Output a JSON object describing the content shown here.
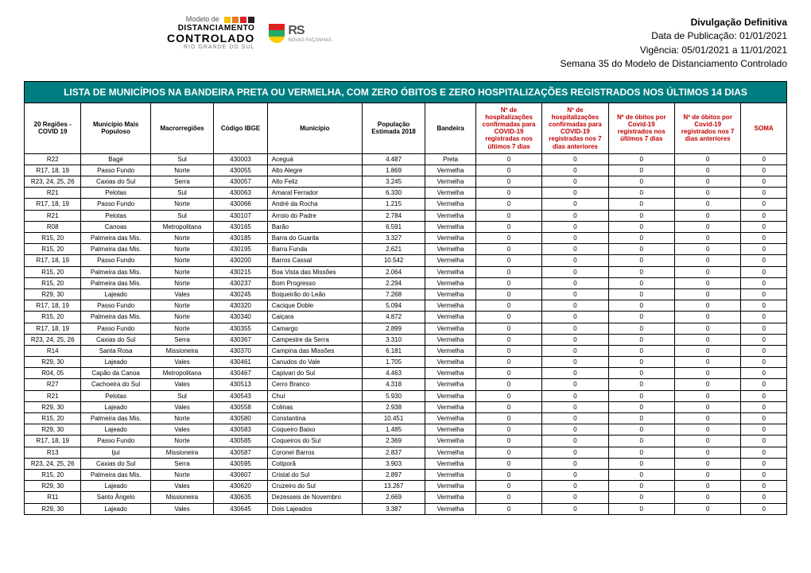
{
  "colors": {
    "title_bg": "#007d80",
    "red_text": "#c00000"
  },
  "header": {
    "line1": "Divulgação Definitiva",
    "line2_label": "Data de Publicação:",
    "line2_value": "01/01/2021",
    "line3_label": "Vigência:",
    "line3_value": "05/01/2021 a 11/01/2021",
    "line4": "Semana 35 do Modelo de Distanciamento Controlado"
  },
  "logo_dc": {
    "l1": "Modelo de",
    "l2": "DISTANCIAMENTO",
    "l3": "CONTROLADO",
    "l4": "RIO GRANDE DO SUL"
  },
  "logo_rs": {
    "text": "RS",
    "sub": "NOVAS FAÇANHAS"
  },
  "title": "LISTA DE MUNICÍPIOS NA BANDEIRA PRETA OU VERMELHA, COM ZERO ÓBITOS E ZERO HOSPITALIZAÇÕES REGISTRADOS NOS ÚLTIMOS 14 DIAS",
  "columns": [
    {
      "label": "20 Regiões - COVID 19",
      "red": false
    },
    {
      "label": "Município Mais Populoso",
      "red": false
    },
    {
      "label": "Macrorregiões",
      "red": false
    },
    {
      "label": "Código IBGE",
      "red": false
    },
    {
      "label": "Município",
      "red": false
    },
    {
      "label": "População Estimada 2018",
      "red": false
    },
    {
      "label": "Bandeira",
      "red": false
    },
    {
      "label": "Nº de hospitalizações confirmadas para COVID-19 registradas nos últimos 7 dias",
      "red": true
    },
    {
      "label": "Nº de hospitalizações confirmadas para COVID-19 registradas nos 7 dias anteriores",
      "red": true
    },
    {
      "label": "Nº de óbitos por Covid-19 registrados nos últimos 7 dias",
      "red": true
    },
    {
      "label": "Nº de óbitos por Covid-19 registrados nos 7 dias anteriores",
      "red": true
    },
    {
      "label": "SOMA",
      "red": true
    }
  ],
  "rows": [
    [
      "R22",
      "Bagé",
      "Sul",
      "430003",
      "Aceguá",
      "4.487",
      "Preta",
      "0",
      "0",
      "0",
      "0",
      "0"
    ],
    [
      "R17, 18, 19",
      "Passo Fundo",
      "Norte",
      "430055",
      "Alto Alegre",
      "1.869",
      "Vermelha",
      "0",
      "0",
      "0",
      "0",
      "0"
    ],
    [
      "R23, 24, 25, 26",
      "Caxias do Sul",
      "Serra",
      "430057",
      "Alto Feliz",
      "3.245",
      "Vermelha",
      "0",
      "0",
      "0",
      "0",
      "0"
    ],
    [
      "R21",
      "Pelotas",
      "Sul",
      "430063",
      "Amaral Ferrador",
      "6.330",
      "Vermelha",
      "0",
      "0",
      "0",
      "0",
      "0"
    ],
    [
      "R17, 18, 19",
      "Passo Fundo",
      "Norte",
      "430066",
      "André da Rocha",
      "1.215",
      "Vermelha",
      "0",
      "0",
      "0",
      "0",
      "0"
    ],
    [
      "R21",
      "Pelotas",
      "Sul",
      "430107",
      "Arroio do Padre",
      "2.784",
      "Vermelha",
      "0",
      "0",
      "0",
      "0",
      "0"
    ],
    [
      "R08",
      "Canoas",
      "Metropolitana",
      "430165",
      "Barão",
      "6.591",
      "Vermelha",
      "0",
      "0",
      "0",
      "0",
      "0"
    ],
    [
      "R15, 20",
      "Palmeira das Mis.",
      "Norte",
      "430185",
      "Barra do Guarita",
      "3.327",
      "Vermelha",
      "0",
      "0",
      "0",
      "0",
      "0"
    ],
    [
      "R15, 20",
      "Palmeira das Mis.",
      "Norte",
      "430195",
      "Barra Funda",
      "2.621",
      "Vermelha",
      "0",
      "0",
      "0",
      "0",
      "0"
    ],
    [
      "R17, 18, 19",
      "Passo Fundo",
      "Norte",
      "430200",
      "Barros Cassal",
      "10.542",
      "Vermelha",
      "0",
      "0",
      "0",
      "0",
      "0"
    ],
    [
      "R15, 20",
      "Palmeira das Mis.",
      "Norte",
      "430215",
      "Boa Vista das Missões",
      "2.064",
      "Vermelha",
      "0",
      "0",
      "0",
      "0",
      "0"
    ],
    [
      "R15, 20",
      "Palmeira das Mis.",
      "Norte",
      "430237",
      "Bom Progresso",
      "2.294",
      "Vermelha",
      "0",
      "0",
      "0",
      "0",
      "0"
    ],
    [
      "R29, 30",
      "Lajeado",
      "Vales",
      "430245",
      "Boqueirão do Leão",
      "7.268",
      "Vermelha",
      "0",
      "0",
      "0",
      "0",
      "0"
    ],
    [
      "R17, 18, 19",
      "Passo Fundo",
      "Norte",
      "430320",
      "Cacique Doble",
      "5.094",
      "Vermelha",
      "0",
      "0",
      "0",
      "0",
      "0"
    ],
    [
      "R15, 20",
      "Palmeira das Mis.",
      "Norte",
      "430340",
      "Caiçara",
      "4.872",
      "Vermelha",
      "0",
      "0",
      "0",
      "0",
      "0"
    ],
    [
      "R17, 18, 19",
      "Passo Fundo",
      "Norte",
      "430355",
      "Camargo",
      "2.899",
      "Vermelha",
      "0",
      "0",
      "0",
      "0",
      "0"
    ],
    [
      "R23, 24, 25, 26",
      "Caxias do Sul",
      "Serra",
      "430367",
      "Campestre da Serra",
      "3.310",
      "Vermelha",
      "0",
      "0",
      "0",
      "0",
      "0"
    ],
    [
      "R14",
      "Santa Rosa",
      "Missioneira",
      "430370",
      "Campina das Missões",
      "6.181",
      "Vermelha",
      "0",
      "0",
      "0",
      "0",
      "0"
    ],
    [
      "R29, 30",
      "Lajeado",
      "Vales",
      "430461",
      "Canudos do Vale",
      "1.705",
      "Vermelha",
      "0",
      "0",
      "0",
      "0",
      "0"
    ],
    [
      "R04, 05",
      "Capão da Canoa",
      "Metropolitana",
      "430467",
      "Capivari do Sul",
      "4.463",
      "Vermelha",
      "0",
      "0",
      "0",
      "0",
      "0"
    ],
    [
      "R27",
      "Cachoeira do Sul",
      "Vales",
      "430513",
      "Cerro Branco",
      "4.318",
      "Vermelha",
      "0",
      "0",
      "0",
      "0",
      "0"
    ],
    [
      "R21",
      "Pelotas",
      "Sul",
      "430543",
      "Chuí",
      "5.930",
      "Vermelha",
      "0",
      "0",
      "0",
      "0",
      "0"
    ],
    [
      "R29, 30",
      "Lajeado",
      "Vales",
      "430558",
      "Colinas",
      "2.938",
      "Vermelha",
      "0",
      "0",
      "0",
      "0",
      "0"
    ],
    [
      "R15, 20",
      "Palmeira das Mis.",
      "Norte",
      "430580",
      "Constantina",
      "10.451",
      "Vermelha",
      "0",
      "0",
      "0",
      "0",
      "0"
    ],
    [
      "R29, 30",
      "Lajeado",
      "Vales",
      "430583",
      "Coqueiro Baixo",
      "1.485",
      "Vermelha",
      "0",
      "0",
      "0",
      "0",
      "0"
    ],
    [
      "R17, 18, 19",
      "Passo Fundo",
      "Norte",
      "430585",
      "Coqueiros do Sul",
      "2.369",
      "Vermelha",
      "0",
      "0",
      "0",
      "0",
      "0"
    ],
    [
      "R13",
      "Ijuí",
      "Missioneira",
      "430587",
      "Coronel Barros",
      "2.837",
      "Vermelha",
      "0",
      "0",
      "0",
      "0",
      "0"
    ],
    [
      "R23, 24, 25, 26",
      "Caxias do Sul",
      "Serra",
      "430595",
      "Cotiporã",
      "3.903",
      "Vermelha",
      "0",
      "0",
      "0",
      "0",
      "0"
    ],
    [
      "R15, 20",
      "Palmeira das Mis.",
      "Norte",
      "430607",
      "Cristal do Sul",
      "2.897",
      "Vermelha",
      "0",
      "0",
      "0",
      "0",
      "0"
    ],
    [
      "R29, 30",
      "Lajeado",
      "Vales",
      "430620",
      "Cruzeiro do Sul",
      "13.267",
      "Vermelha",
      "0",
      "0",
      "0",
      "0",
      "0"
    ],
    [
      "R11",
      "Santo Ângelo",
      "Missioneira",
      "430635",
      "Dezesseis de Novembro",
      "2.669",
      "Vermelha",
      "0",
      "0",
      "0",
      "0",
      "0"
    ],
    [
      "R29, 30",
      "Lajeado",
      "Vales",
      "430645",
      "Dois Lajeados",
      "3.387",
      "Vermelha",
      "0",
      "0",
      "0",
      "0",
      "0"
    ]
  ]
}
